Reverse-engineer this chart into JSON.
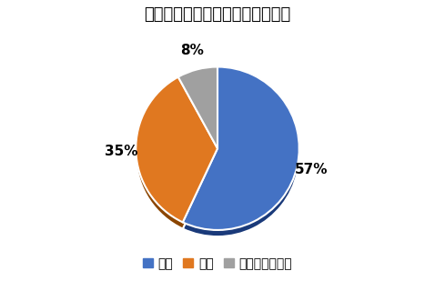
{
  "title": "ハスラーの乗り心地の満足度調査",
  "labels": [
    "満足",
    "不満",
    "どちらでもない"
  ],
  "values": [
    57,
    35,
    8
  ],
  "colors": [
    "#4472C4",
    "#E07820",
    "#A0A0A0"
  ],
  "shadow_colors": [
    "#1a3a7a",
    "#8B4500",
    "#606060"
  ],
  "startangle": 90,
  "title_fontsize": 13,
  "legend_fontsize": 10,
  "pct_fontsize": 11,
  "background_color": "#FFFFFF",
  "pct_distance": 1.15,
  "shadow_depth": 0.08
}
